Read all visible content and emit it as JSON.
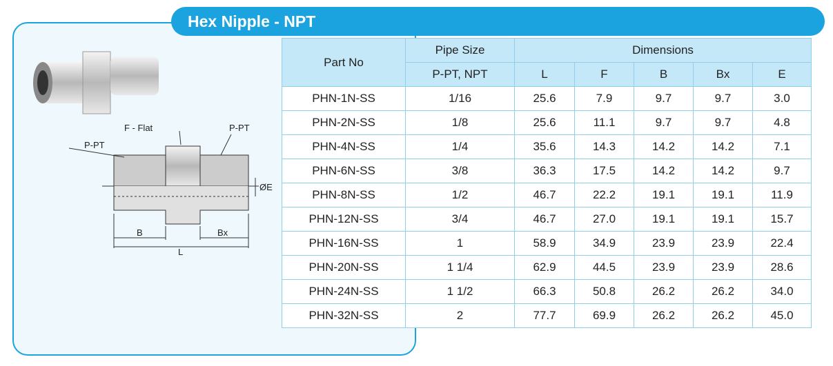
{
  "header": {
    "title": "Hex Nipple - NPT"
  },
  "diagram": {
    "labels": {
      "flat": "F - Flat",
      "pipe_left": "P-PT",
      "pipe_right": "P-PT",
      "bore": "ØE",
      "b": "B",
      "bx": "Bx",
      "l": "L"
    }
  },
  "table": {
    "columns": {
      "part_no": "Part No",
      "pipe_size": "Pipe Size",
      "pipe_size_sub": "P-PT, NPT",
      "dimensions": "Dimensions",
      "dims": [
        "L",
        "F",
        "B",
        "Bx",
        "E"
      ]
    },
    "rows": [
      [
        "PHN-1N-SS",
        "1/16",
        "25.6",
        "7.9",
        "9.7",
        "9.7",
        "3.0"
      ],
      [
        "PHN-2N-SS",
        "1/8",
        "25.6",
        "11.1",
        "9.7",
        "9.7",
        "4.8"
      ],
      [
        "PHN-4N-SS",
        "1/4",
        "35.6",
        "14.3",
        "14.2",
        "14.2",
        "7.1"
      ],
      [
        "PHN-6N-SS",
        "3/8",
        "36.3",
        "17.5",
        "14.2",
        "14.2",
        "9.7"
      ],
      [
        "PHN-8N-SS",
        "1/2",
        "46.7",
        "22.2",
        "19.1",
        "19.1",
        "11.9"
      ],
      [
        "PHN-12N-SS",
        "3/4",
        "46.7",
        "27.0",
        "19.1",
        "19.1",
        "15.7"
      ],
      [
        "PHN-16N-SS",
        "1",
        "58.9",
        "34.9",
        "23.9",
        "23.9",
        "22.4"
      ],
      [
        "PHN-20N-SS",
        "1 1/4",
        "62.9",
        "44.5",
        "23.9",
        "23.9",
        "28.6"
      ],
      [
        "PHN-24N-SS",
        "1 1/2",
        "66.3",
        "50.8",
        "26.2",
        "26.2",
        "34.0"
      ],
      [
        "PHN-32N-SS",
        "2",
        "77.7",
        "69.9",
        "26.2",
        "26.2",
        "45.0"
      ]
    ]
  }
}
